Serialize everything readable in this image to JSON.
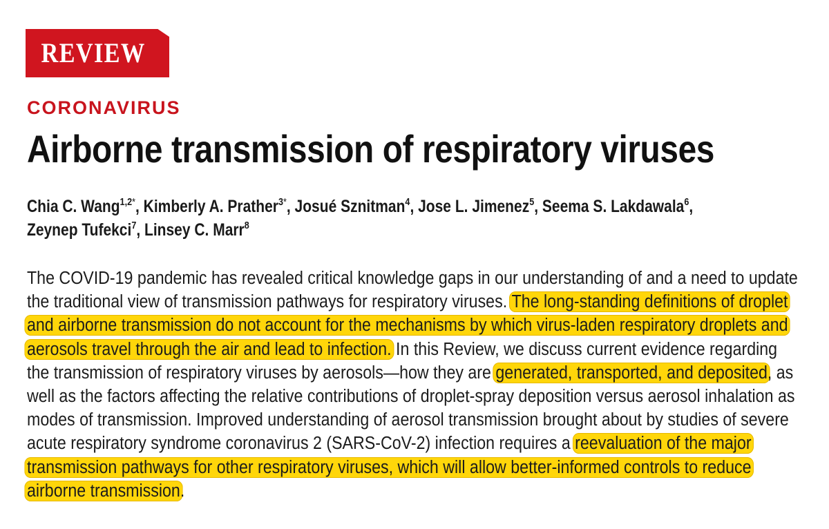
{
  "badge": "REVIEW",
  "section": "CORONAVIRUS",
  "title": "Airborne transmission of respiratory viruses",
  "authors": [
    {
      "name": "Chia C. Wang",
      "aff": "1,2",
      "star": "*",
      "sep": ", "
    },
    {
      "name": "Kimberly A. Prather",
      "aff": "3",
      "star": "*",
      "sep": ", "
    },
    {
      "name": "Josué Sznitman",
      "aff": "4",
      "star": "",
      "sep": ", "
    },
    {
      "name": "Jose L. Jimenez",
      "aff": "5",
      "star": "",
      "sep": ", "
    },
    {
      "name": "Seema S. Lakdawala",
      "aff": "6",
      "star": "",
      "sep": ", "
    },
    {
      "name": "Zeynep Tufekci",
      "aff": "7",
      "star": "",
      "sep": ", "
    },
    {
      "name": "Linsey C. Marr",
      "aff": "8",
      "star": "",
      "sep": ""
    }
  ],
  "abstract": [
    {
      "text": "The COVID-19 pandemic has revealed critical knowledge gaps in our understanding of and a need to update the traditional view of transmission pathways for respiratory viruses. ",
      "highlight": false
    },
    {
      "text": "The long-standing definitions of droplet and airborne transmission do not account for the mechanisms by which virus-laden respiratory droplets and aerosols travel through the air and lead to infection.",
      "highlight": true
    },
    {
      "text": " In this Review, we discuss current evidence regarding the transmission of respiratory viruses by aerosols—how they are ",
      "highlight": false
    },
    {
      "text": "generated, transported, and deposited",
      "highlight": true
    },
    {
      "text": ", as well as the factors affecting the relative contributions of droplet-spray deposition versus aerosol inhalation as modes of transmission. Improved understanding of aerosol transmission brought about by studies of severe acute respiratory syndrome coronavirus 2 (SARS-CoV-2) infection requires a ",
      "highlight": false
    },
    {
      "text": "reevaluation of the major transmission pathways for other respiratory viruses, which will allow better-informed controls to reduce airborne transmission",
      "highlight": true
    },
    {
      "text": ".",
      "highlight": false
    }
  ],
  "colors": {
    "badge_bg": "#d0151f",
    "section": "#c8141d",
    "highlight": "#ffd60a"
  }
}
